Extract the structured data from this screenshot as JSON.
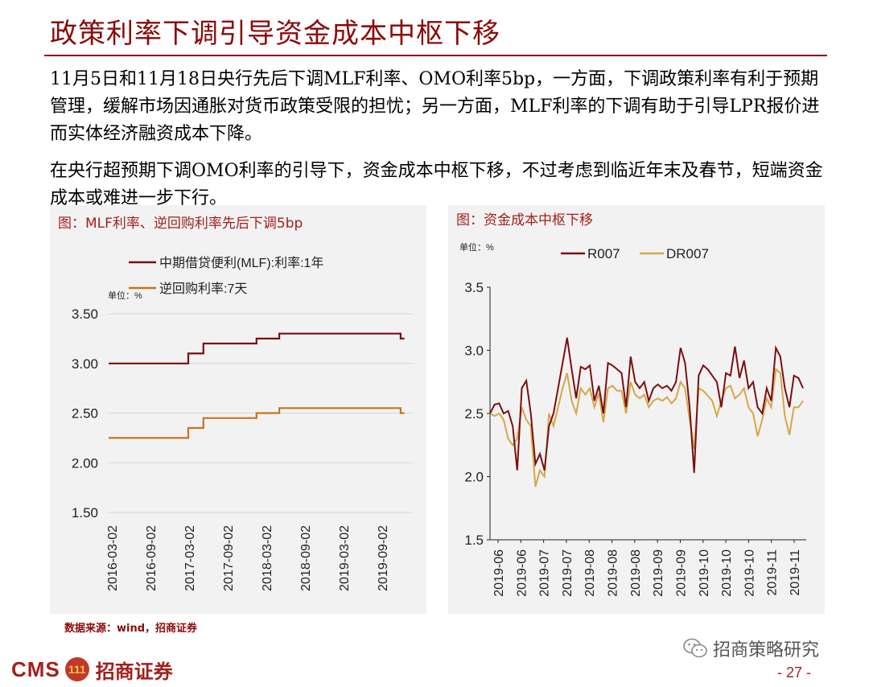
{
  "page": {
    "title": "政策利率下调引导资金成本中枢下移",
    "paragraphs": [
      "11月5日和11月18日央行先后下调MLF利率、OMO利率5bp，一方面，下调政策利率有利于预期管理，缓解市场因通胀对货币政策受限的担忧；另一方面，MLF利率的下调有助于引导LPR报价进而实体经济融资成本下降。",
      "在央行超预期下调OMO利率的引导下，资金成本中枢下移，不过考虑到临近年末及春节，短端资金成本或难进一步下行。"
    ],
    "source": "数据来源：wind，招商证券",
    "footer": {
      "logo_text": "CMS",
      "badge_text": "111",
      "company": "招商证券",
      "wechat": "招商策略研究",
      "page_number": "- 27 -"
    }
  },
  "colors": {
    "mlf": "#7a1010",
    "omo": "#c8731e",
    "r007": "#7a1010",
    "dr007": "#d4a84a",
    "accent": "#8b0a0a"
  },
  "chart_data": [
    {
      "type": "line",
      "title": "图：MLF利率、逆回购利率先后下调5bp",
      "unit": "单位：%",
      "ylim": [
        1.5,
        3.5
      ],
      "yticks": [
        "3.50",
        "3.00",
        "2.50",
        "2.00",
        "1.50"
      ],
      "xticks": [
        "2016-03-02",
        "2016-09-02",
        "2017-03-02",
        "2017-09-02",
        "2018-03-02",
        "2018-09-02",
        "2019-03-02",
        "2019-09-02"
      ],
      "grid": true,
      "legend_position": "top-left",
      "series": [
        {
          "name": "中期借贷便利(MLF):利率:1年",
          "color": "#7a1010",
          "values": [
            [
              2016.0,
              3.0
            ],
            [
              2017.05,
              3.0
            ],
            [
              2017.05,
              3.1
            ],
            [
              2017.25,
              3.1
            ],
            [
              2017.25,
              3.2
            ],
            [
              2017.95,
              3.2
            ],
            [
              2017.95,
              3.25
            ],
            [
              2018.25,
              3.25
            ],
            [
              2018.25,
              3.3
            ],
            [
              2019.85,
              3.3
            ],
            [
              2019.85,
              3.25
            ],
            [
              2019.9,
              3.25
            ]
          ]
        },
        {
          "name": "逆回购利率:7天",
          "color": "#c8731e",
          "values": [
            [
              2016.0,
              2.25
            ],
            [
              2017.05,
              2.25
            ],
            [
              2017.05,
              2.35
            ],
            [
              2017.25,
              2.35
            ],
            [
              2017.25,
              2.45
            ],
            [
              2017.95,
              2.45
            ],
            [
              2017.95,
              2.5
            ],
            [
              2018.25,
              2.5
            ],
            [
              2018.25,
              2.55
            ],
            [
              2019.85,
              2.55
            ],
            [
              2019.85,
              2.5
            ],
            [
              2019.9,
              2.5
            ]
          ]
        }
      ]
    },
    {
      "type": "line",
      "title": "图：资金成本中枢下移",
      "unit": "单位：%",
      "ylim": [
        1.5,
        3.5
      ],
      "yticks": [
        "3.5",
        "3.0",
        "2.5",
        "2.0",
        "1.5"
      ],
      "xticks": [
        "2019-06",
        "2019-06",
        "2019-07",
        "2019-07",
        "2019-08",
        "2019-08",
        "2019-08",
        "2019-09",
        "2019-09",
        "2019-10",
        "2019-10",
        "2019-10",
        "2019-11",
        "2019-11"
      ],
      "grid": false,
      "legend_position": "top",
      "series": [
        {
          "name": "R007",
          "color": "#7a1010",
          "values": [
            2.5,
            2.57,
            2.58,
            2.5,
            2.52,
            2.4,
            2.05,
            2.7,
            2.76,
            2.5,
            2.1,
            2.18,
            2.05,
            2.4,
            2.5,
            2.7,
            2.9,
            3.1,
            2.85,
            2.62,
            2.87,
            2.85,
            2.88,
            2.6,
            2.72,
            2.5,
            2.9,
            2.88,
            2.85,
            2.82,
            2.55,
            2.95,
            2.75,
            2.7,
            2.75,
            2.6,
            2.7,
            2.73,
            2.7,
            2.72,
            2.68,
            2.75,
            3.02,
            2.9,
            2.55,
            2.03,
            2.8,
            2.88,
            2.85,
            2.8,
            2.75,
            2.55,
            2.82,
            2.8,
            3.03,
            2.78,
            2.92,
            2.7,
            2.75,
            2.55,
            2.5,
            2.7,
            2.6,
            3.02,
            2.95,
            2.7,
            2.55,
            2.8,
            2.78,
            2.7
          ]
        },
        {
          "name": "DR007",
          "color": "#d4a84a",
          "values": [
            2.5,
            2.48,
            2.5,
            2.45,
            2.3,
            2.25,
            2.3,
            2.55,
            2.45,
            2.4,
            1.92,
            2.05,
            2.0,
            2.5,
            2.4,
            2.55,
            2.7,
            2.82,
            2.6,
            2.5,
            2.7,
            2.65,
            2.7,
            2.55,
            2.66,
            2.43,
            2.7,
            2.72,
            2.68,
            2.68,
            2.5,
            2.75,
            2.65,
            2.62,
            2.65,
            2.55,
            2.6,
            2.62,
            2.6,
            2.63,
            2.58,
            2.62,
            2.75,
            2.7,
            2.45,
            2.22,
            2.7,
            2.68,
            2.64,
            2.6,
            2.48,
            2.6,
            2.7,
            2.72,
            2.62,
            2.65,
            2.7,
            2.55,
            2.5,
            2.32,
            2.45,
            2.62,
            2.55,
            2.85,
            2.82,
            2.48,
            2.33,
            2.55,
            2.55,
            2.6
          ]
        }
      ]
    }
  ]
}
